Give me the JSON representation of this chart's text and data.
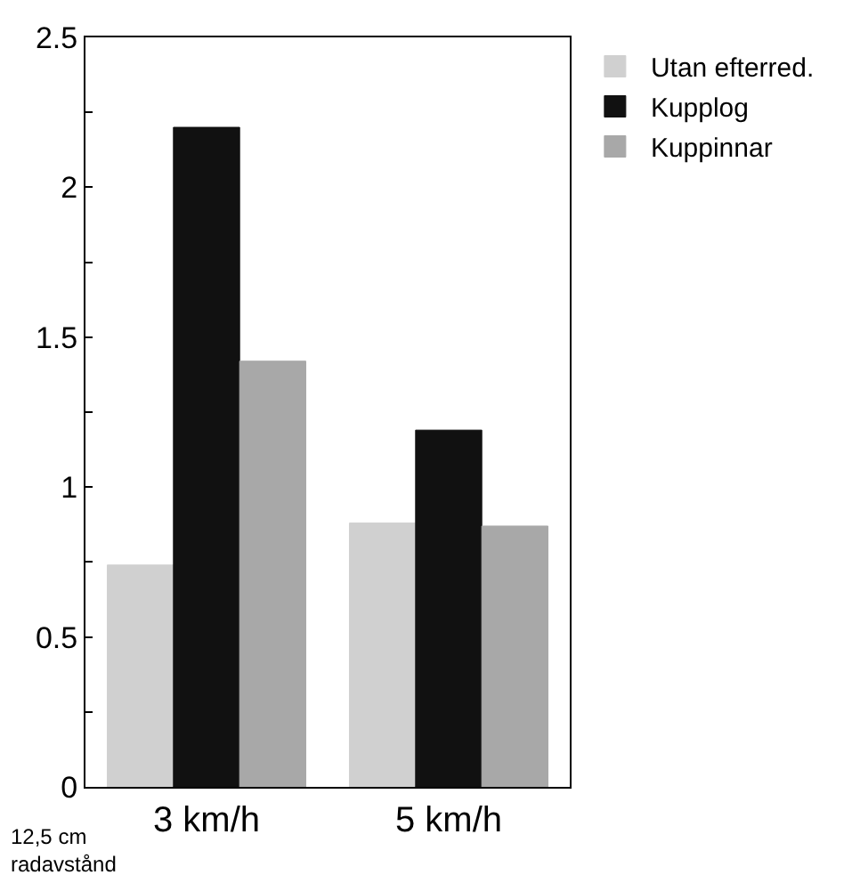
{
  "chart_data": {
    "type": "bar",
    "categories": [
      "3 km/h",
      "5 km/h"
    ],
    "series": [
      {
        "name": "Utan efterred.",
        "color": "#d0d0d0",
        "values": [
          0.74,
          0.88
        ]
      },
      {
        "name": "Kupplog",
        "color": "#111111",
        "values": [
          2.2,
          1.19
        ]
      },
      {
        "name": "Kuppinnar",
        "color": "#a8a8a8",
        "values": [
          1.42,
          0.87
        ]
      }
    ],
    "ylim": [
      0,
      2.5
    ],
    "yticks": [
      0,
      {
        "value": 0.25,
        "label": null
      },
      0.5,
      {
        "value": 0.75,
        "label": null
      },
      1,
      {
        "value": 1.25,
        "label": null
      },
      1.5,
      {
        "value": 1.75,
        "label": null
      },
      2,
      {
        "value": 2.25,
        "label": null
      },
      2.5
    ],
    "annotations": [
      "12,5 cm\nradavstånd"
    ],
    "legend": "top right"
  }
}
